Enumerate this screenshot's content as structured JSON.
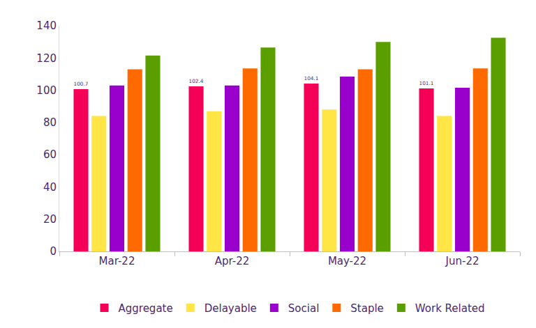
{
  "chart_data": {
    "type": "bar",
    "categories": [
      "Mar-22",
      "Apr-22",
      "May-22",
      "Jun-22"
    ],
    "series": [
      {
        "name": "Aggregate",
        "color": "#f50057",
        "values": [
          100.7,
          102.4,
          104.1,
          101.1
        ],
        "data_labels": true
      },
      {
        "name": "Delayable",
        "color": "#ffe545",
        "values": [
          84,
          87,
          88,
          84
        ]
      },
      {
        "name": "Social",
        "color": "#9a00cc",
        "values": [
          103,
          103,
          108.5,
          101.5
        ]
      },
      {
        "name": "Staple",
        "color": "#ff6a00",
        "values": [
          113,
          113.5,
          113,
          113.5
        ]
      },
      {
        "name": "Work Related",
        "color": "#5a9e00",
        "values": [
          121.5,
          126.5,
          130,
          132.5
        ]
      }
    ],
    "ylim": [
      0,
      140
    ],
    "yticks": [
      0,
      20,
      40,
      60,
      80,
      100,
      120,
      140
    ],
    "grid": false,
    "legend": "bottom"
  }
}
